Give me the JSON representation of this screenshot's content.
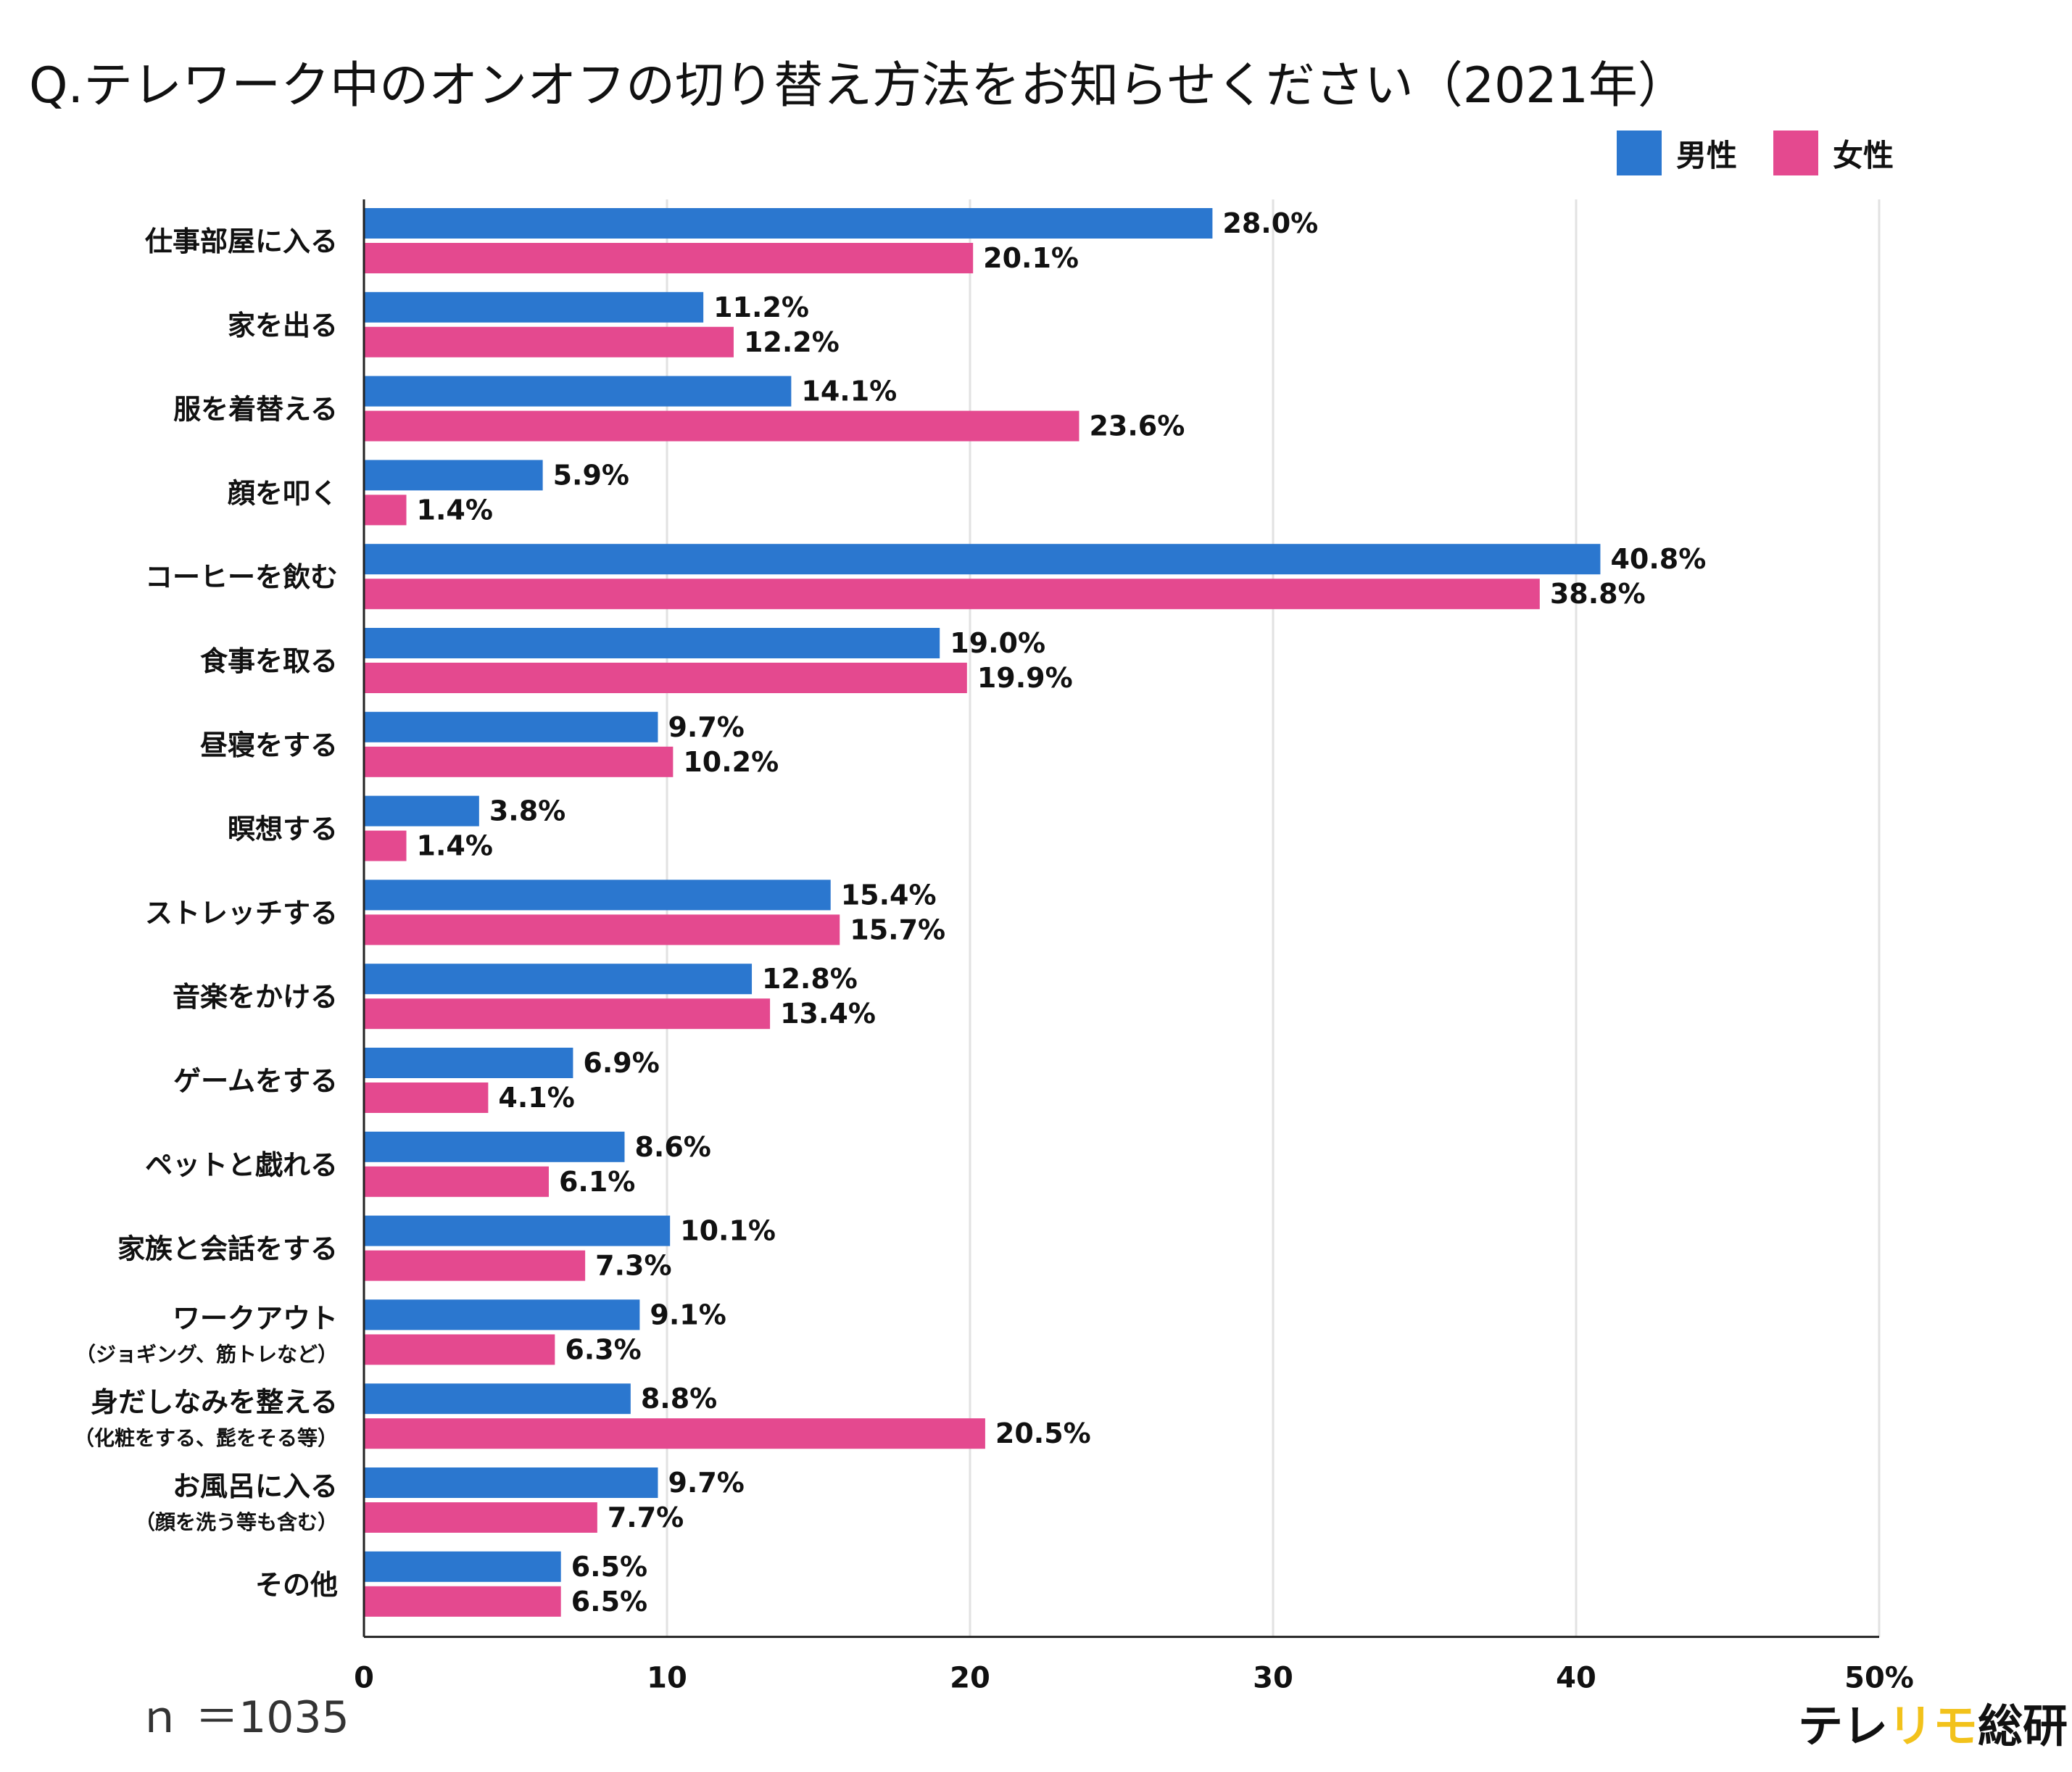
{
  "title": "Q.テレワーク中のオンオフの切り替え方法をお知らせください（2021年）",
  "note": "ｎ ＝1035",
  "brand": {
    "part1": "テレ",
    "part2": "リモ",
    "part3": "総研"
  },
  "colors": {
    "male": "#2b77cf",
    "female": "#e4498f",
    "grid": "#e2e2e2",
    "axis": "#222222"
  },
  "chart_data": {
    "type": "bar",
    "orientation": "horizontal",
    "xlim": [
      0,
      50
    ],
    "xticks": [
      "0",
      "10",
      "20",
      "30",
      "40",
      "50%"
    ],
    "categories": [
      {
        "label": "仕事部屋に入る",
        "sub": ""
      },
      {
        "label": "家を出る",
        "sub": ""
      },
      {
        "label": "服を着替える",
        "sub": ""
      },
      {
        "label": "顔を叩く",
        "sub": ""
      },
      {
        "label": "コーヒーを飲む",
        "sub": ""
      },
      {
        "label": "食事を取る",
        "sub": ""
      },
      {
        "label": "昼寝をする",
        "sub": ""
      },
      {
        "label": "瞑想する",
        "sub": ""
      },
      {
        "label": "ストレッチする",
        "sub": ""
      },
      {
        "label": "音楽をかける",
        "sub": ""
      },
      {
        "label": "ゲームをする",
        "sub": ""
      },
      {
        "label": "ペットと戯れる",
        "sub": ""
      },
      {
        "label": "家族と会話をする",
        "sub": ""
      },
      {
        "label": "ワークアウト",
        "sub": "（ジョギング、筋トレなど）"
      },
      {
        "label": "身だしなみを整える",
        "sub": "（化粧をする、髭をそる等）"
      },
      {
        "label": "お風呂に入る",
        "sub": "（顔を洗う等も含む）"
      },
      {
        "label": "その他",
        "sub": ""
      }
    ],
    "series": [
      {
        "name": "男性",
        "values": [
          28.0,
          11.2,
          14.1,
          5.9,
          40.8,
          19.0,
          9.7,
          3.8,
          15.4,
          12.8,
          6.9,
          8.6,
          10.1,
          9.1,
          8.8,
          9.7,
          6.5
        ],
        "labels": [
          "28.0%",
          "11.2%",
          "14.1%",
          "5.9%",
          "40.8%",
          "19.0%",
          "9.7%",
          "3.8%",
          "15.4%",
          "12.8%",
          "6.9%",
          "8.6%",
          "10.1%",
          "9.1%",
          "8.8%",
          "9.7%",
          "6.5%"
        ]
      },
      {
        "name": "女性",
        "values": [
          20.1,
          12.2,
          23.6,
          1.4,
          38.8,
          19.9,
          10.2,
          1.4,
          15.7,
          13.4,
          4.1,
          6.1,
          7.3,
          6.3,
          20.5,
          7.7,
          6.5
        ],
        "labels": [
          "20.1%",
          "12.2%",
          "23.6%",
          "1.4%",
          "38.8%",
          "19.9%",
          "10.2%",
          "1.4%",
          "15.7%",
          "13.4%",
          "4.1%",
          "6.1%",
          "7.3%",
          "6.3%",
          "20.5%",
          "7.7%",
          "6.5%"
        ]
      }
    ]
  }
}
